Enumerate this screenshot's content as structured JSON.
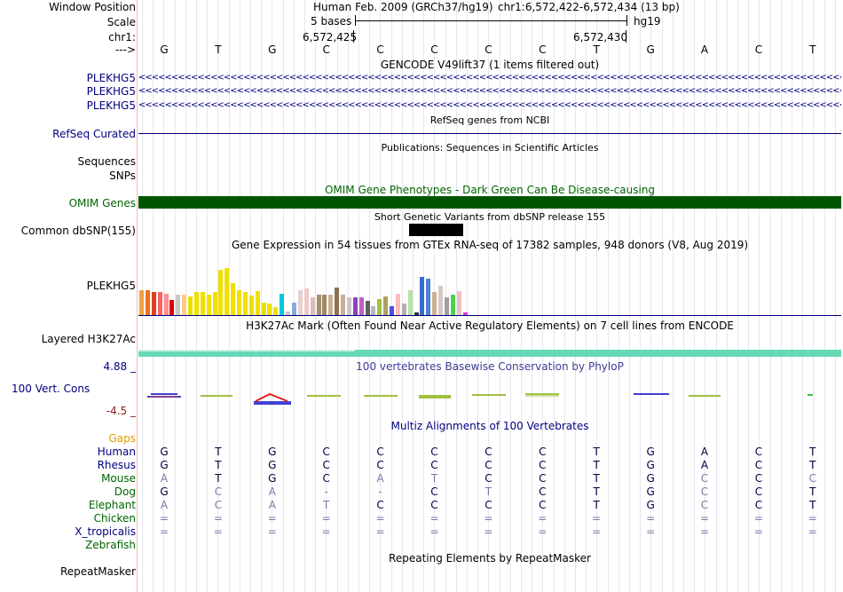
{
  "header": {
    "window_position_label": "Window Position",
    "scale_label": "Scale",
    "chrom_label": "chr1:",
    "arrow_label": "--->",
    "assembly_text": "Human Feb. 2009 (GRCh37/hg19)",
    "position_text": "chr1:6,572,422-6,572,434 (13 bp)",
    "scale_text": "5 bases",
    "db_text": "hg19",
    "coord_left": "6,572,425",
    "coord_right": "6,572,430"
  },
  "sequence": [
    "G",
    "T",
    "G",
    "C",
    "C",
    "C",
    "C",
    "C",
    "T",
    "G",
    "A",
    "C",
    "T"
  ],
  "tracks": {
    "gencode_title": "GENCODE V49lift37 (1 items filtered out)",
    "gencode_genes": [
      "PLEKHG5",
      "PLEKHG5",
      "PLEKHG5"
    ],
    "gencode_arrows": "<<<<<<<<<<<<<<<<<<<<<<<<<<<<<<<<<<<<<<<<<<<<<<<<<<<<<<<<<<<<<<<<<<<<<<<<<<<<<<<<<<<<<<<<<<<<<<<<<<<<<<<<<<<<<<<<<<<<<<<<<<<<<<<<<<<<<<<<<<<<<<",
    "refseq_title": "RefSeq genes from NCBI",
    "refseq_label": "RefSeq Curated",
    "pubs_title": "Publications: Sequences in Scientific Articles",
    "sequences_label": "Sequences",
    "snps_label": "SNPs",
    "omim_title": "OMIM Gene Phenotypes - Dark Green Can Be Disease-causing",
    "omim_label": "OMIM Genes",
    "dbsnp_title": "Short Genetic Variants from dbSNP release 155",
    "dbsnp_label": "Common dbSNP(155)",
    "gtex_title": "Gene Expression in 54 tissues from GTEx RNA-seq of 17382 samples, 948 donors (V8, Aug 2019)",
    "gtex_label": "PLEKHG5",
    "h3k27_title": "H3K27Ac Mark (Often Found Near Active Regulatory Elements) on 7 cell lines from ENCODE",
    "h3k27_label": "Layered H3K27Ac",
    "phylop_title": "100 vertebrates Basewise Conservation by PhyloP",
    "phylop_max": "4.88 _",
    "phylop_min": "-4.5 _",
    "phylop_label": "100 Vert. Cons",
    "multiz_title": "Multiz Alignments of 100 Vertebrates",
    "gaps_label": "Gaps",
    "repeat_title": "Repeating Elements by RepeatMasker",
    "repeat_label": "RepeatMasker"
  },
  "gtex_bars": [
    {
      "v": 0.4,
      "c": "#f0a040"
    },
    {
      "v": 0.4,
      "c": "#f07020"
    },
    {
      "v": 0.36,
      "c": "#e04020"
    },
    {
      "v": 0.36,
      "c": "#ff6060"
    },
    {
      "v": 0.34,
      "c": "#ff9090"
    },
    {
      "v": 0.24,
      "c": "#e00000"
    },
    {
      "v": 0.32,
      "c": "#c8c8c8"
    },
    {
      "v": 0.32,
      "c": "#ffcc88"
    },
    {
      "v": 0.3,
      "c": "#e8e000"
    },
    {
      "v": 0.36,
      "c": "#f0e000"
    },
    {
      "v": 0.36,
      "c": "#f0e000"
    },
    {
      "v": 0.33,
      "c": "#f0e000"
    },
    {
      "v": 0.36,
      "c": "#f0e000"
    },
    {
      "v": 0.72,
      "c": "#f0e000"
    },
    {
      "v": 0.74,
      "c": "#f0e000"
    },
    {
      "v": 0.5,
      "c": "#f0e000"
    },
    {
      "v": 0.4,
      "c": "#f0e000"
    },
    {
      "v": 0.36,
      "c": "#f0e000"
    },
    {
      "v": 0.31,
      "c": "#f0e000"
    },
    {
      "v": 0.38,
      "c": "#f0e000"
    },
    {
      "v": 0.2,
      "c": "#e8e000"
    },
    {
      "v": 0.18,
      "c": "#f0e000"
    },
    {
      "v": 0.12,
      "c": "#f0e000"
    },
    {
      "v": 0.34,
      "c": "#00c8d8"
    },
    {
      "v": 0.06,
      "c": "#c8c8c8"
    },
    {
      "v": 0.2,
      "c": "#88aadd"
    },
    {
      "v": 0.4,
      "c": "#e8d0d0"
    },
    {
      "v": 0.42,
      "c": "#f0c8c8"
    },
    {
      "v": 0.28,
      "c": "#d8c0c0"
    },
    {
      "v": 0.32,
      "c": "#a09070"
    },
    {
      "v": 0.32,
      "c": "#a08868"
    },
    {
      "v": 0.32,
      "c": "#c8b090"
    },
    {
      "v": 0.44,
      "c": "#907050"
    },
    {
      "v": 0.32,
      "c": "#c8b098"
    },
    {
      "v": 0.28,
      "c": "#c8c8c8"
    },
    {
      "v": 0.28,
      "c": "#9040c0"
    },
    {
      "v": 0.28,
      "c": "#c060c0"
    },
    {
      "v": 0.22,
      "c": "#606060"
    },
    {
      "v": 0.14,
      "c": "#b8b8b8"
    },
    {
      "v": 0.26,
      "c": "#a0c040"
    },
    {
      "v": 0.3,
      "c": "#b0a060"
    },
    {
      "v": 0.14,
      "c": "#5050e0"
    },
    {
      "v": 0.34,
      "c": "#ffbcbc"
    },
    {
      "v": 0.18,
      "c": "#b0b0b0"
    },
    {
      "v": 0.4,
      "c": "#b8e0a8"
    },
    {
      "v": 0.04,
      "c": "#303030"
    },
    {
      "v": 0.6,
      "c": "#3070d0"
    },
    {
      "v": 0.58,
      "c": "#5080d8"
    },
    {
      "v": 0.36,
      "c": "#d0b090"
    },
    {
      "v": 0.46,
      "c": "#d8c8c8"
    },
    {
      "v": 0.28,
      "c": "#a0a0a0"
    },
    {
      "v": 0.32,
      "c": "#50d050"
    },
    {
      "v": 0.38,
      "c": "#f0c0c0"
    },
    {
      "v": 0.04,
      "c": "#e030e0"
    }
  ],
  "multiz": [
    {
      "name": "Human",
      "color": "#000080",
      "bases": [
        "G",
        "T",
        "G",
        "C",
        "C",
        "C",
        "C",
        "C",
        "T",
        "G",
        "A",
        "C",
        "T"
      ],
      "faded": []
    },
    {
      "name": "Rhesus",
      "color": "#000080",
      "bases": [
        "G",
        "T",
        "G",
        "C",
        "C",
        "C",
        "C",
        "C",
        "T",
        "G",
        "A",
        "C",
        "T"
      ],
      "faded": []
    },
    {
      "name": "Mouse",
      "color": "#006400",
      "bases": [
        "A",
        "T",
        "G",
        "C",
        "A",
        "T",
        "C",
        "C",
        "T",
        "G",
        "C",
        "C",
        "C"
      ],
      "faded": [
        0,
        4,
        5,
        10,
        12
      ]
    },
    {
      "name": "Dog",
      "color": "#006400",
      "bases": [
        "G",
        "C",
        "A",
        "-",
        "-",
        "C",
        "T",
        "C",
        "T",
        "G",
        "C",
        "C",
        "T"
      ],
      "faded": [
        1,
        2,
        3,
        4,
        6,
        10
      ]
    },
    {
      "name": "Elephant",
      "color": "#006400",
      "bases": [
        "A",
        "C",
        "A",
        "T",
        "C",
        "C",
        "C",
        "C",
        "T",
        "G",
        "C",
        "C",
        "T"
      ],
      "faded": [
        0,
        1,
        2,
        3,
        10
      ]
    },
    {
      "name": "Chicken",
      "color": "#006400",
      "bases": [
        "=",
        "=",
        "=",
        "=",
        "=",
        "=",
        "=",
        "=",
        "=",
        "=",
        "=",
        "=",
        "="
      ],
      "faded": [
        0,
        1,
        2,
        3,
        4,
        5,
        6,
        7,
        8,
        9,
        10,
        11,
        12
      ]
    },
    {
      "name": "X_tropicalis",
      "color": "#000080",
      "bases": [
        "=",
        "=",
        "=",
        "=",
        "=",
        "=",
        "=",
        "=",
        "=",
        "=",
        "=",
        "=",
        "="
      ],
      "faded": [
        0,
        1,
        2,
        3,
        4,
        5,
        6,
        7,
        8,
        9,
        10,
        11,
        12
      ]
    },
    {
      "name": "Zebrafish",
      "color": "#006400",
      "bases": [],
      "faded": []
    }
  ],
  "colors": {
    "omim": "#005500",
    "h3k27": "#66d8b8",
    "refseq": "#000080",
    "dbsnp": "#000000"
  }
}
